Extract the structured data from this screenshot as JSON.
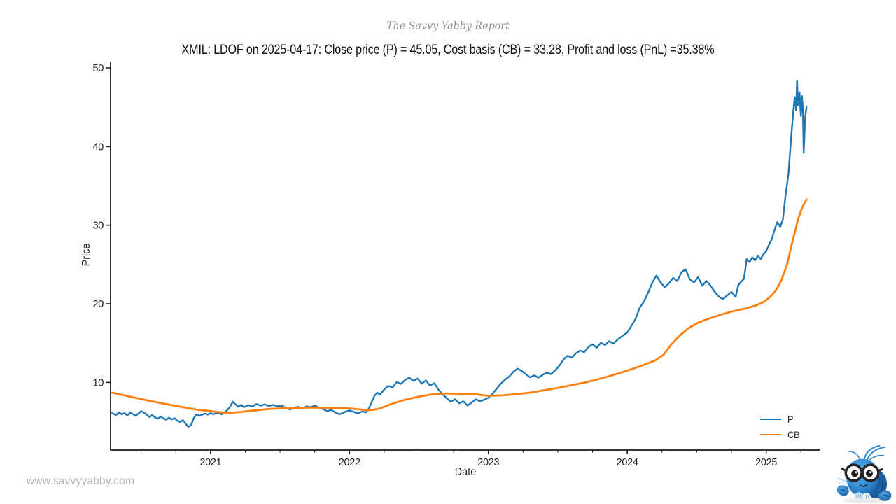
{
  "footer": {
    "watermark": "www.savvyyabby.com",
    "mascot_icon": "yabby-mascot-icon"
  },
  "chart_data": {
    "type": "line",
    "suptitle": "The Savvy Yabby Report",
    "title": "XMIL: LDOF on 2025-04-17: Close price (P) = 45.05, Cost basis (CB) = 33.28, Profit and loss (PnL) =35.38%",
    "xlabel": "Date",
    "ylabel": "Price",
    "xlim": [
      2020.28,
      2025.39
    ],
    "ylim": [
      1.4,
      50.8
    ],
    "yticks": [
      10,
      20,
      30,
      40,
      50
    ],
    "xticks": [
      2021,
      2022,
      2023,
      2024,
      2025
    ],
    "minor_xtick_step": 0.25,
    "grid": false,
    "legend_position": "lower right",
    "axis_color": "#1c1c1c",
    "series": [
      {
        "name": "P",
        "color": "#1f77b4",
        "width": 2.4,
        "points": [
          [
            2020.29,
            6.1
          ],
          [
            2020.32,
            5.85
          ],
          [
            2020.34,
            6.2
          ],
          [
            2020.36,
            5.95
          ],
          [
            2020.38,
            6.1
          ],
          [
            2020.4,
            5.8
          ],
          [
            2020.42,
            6.15
          ],
          [
            2020.44,
            6.0
          ],
          [
            2020.46,
            5.75
          ],
          [
            2020.48,
            6.05
          ],
          [
            2020.5,
            6.35
          ],
          [
            2020.52,
            6.15
          ],
          [
            2020.54,
            5.9
          ],
          [
            2020.56,
            5.6
          ],
          [
            2020.58,
            5.85
          ],
          [
            2020.6,
            5.55
          ],
          [
            2020.62,
            5.4
          ],
          [
            2020.64,
            5.65
          ],
          [
            2020.66,
            5.45
          ],
          [
            2020.68,
            5.25
          ],
          [
            2020.7,
            5.5
          ],
          [
            2020.72,
            5.3
          ],
          [
            2020.74,
            5.45
          ],
          [
            2020.76,
            5.15
          ],
          [
            2020.78,
            4.95
          ],
          [
            2020.8,
            5.2
          ],
          [
            2020.82,
            4.75
          ],
          [
            2020.84,
            4.35
          ],
          [
            2020.86,
            4.6
          ],
          [
            2020.88,
            5.5
          ],
          [
            2020.9,
            5.95
          ],
          [
            2020.92,
            5.75
          ],
          [
            2020.94,
            5.9
          ],
          [
            2020.96,
            6.05
          ],
          [
            2020.98,
            5.9
          ],
          [
            2021.0,
            6.1
          ],
          [
            2021.02,
            5.95
          ],
          [
            2021.05,
            6.15
          ],
          [
            2021.08,
            5.95
          ],
          [
            2021.11,
            6.3
          ],
          [
            2021.14,
            6.9
          ],
          [
            2021.16,
            7.55
          ],
          [
            2021.18,
            7.2
          ],
          [
            2021.2,
            6.9
          ],
          [
            2021.22,
            7.15
          ],
          [
            2021.24,
            6.85
          ],
          [
            2021.27,
            7.1
          ],
          [
            2021.3,
            6.95
          ],
          [
            2021.33,
            7.25
          ],
          [
            2021.36,
            7.05
          ],
          [
            2021.39,
            7.2
          ],
          [
            2021.42,
            7.0
          ],
          [
            2021.45,
            7.15
          ],
          [
            2021.48,
            6.95
          ],
          [
            2021.51,
            7.05
          ],
          [
            2021.54,
            6.8
          ],
          [
            2021.57,
            6.55
          ],
          [
            2021.6,
            6.75
          ],
          [
            2021.63,
            6.9
          ],
          [
            2021.66,
            6.65
          ],
          [
            2021.69,
            6.95
          ],
          [
            2021.72,
            6.85
          ],
          [
            2021.75,
            7.05
          ],
          [
            2021.78,
            6.8
          ],
          [
            2021.81,
            6.6
          ],
          [
            2021.84,
            6.35
          ],
          [
            2021.87,
            6.5
          ],
          [
            2021.9,
            6.15
          ],
          [
            2021.93,
            5.95
          ],
          [
            2021.96,
            6.2
          ],
          [
            2022.0,
            6.45
          ],
          [
            2022.03,
            6.25
          ],
          [
            2022.06,
            6.05
          ],
          [
            2022.09,
            6.3
          ],
          [
            2022.12,
            6.2
          ],
          [
            2022.14,
            6.7
          ],
          [
            2022.16,
            7.5
          ],
          [
            2022.18,
            8.3
          ],
          [
            2022.2,
            8.7
          ],
          [
            2022.22,
            8.45
          ],
          [
            2022.25,
            9.1
          ],
          [
            2022.28,
            9.55
          ],
          [
            2022.31,
            9.35
          ],
          [
            2022.34,
            10.05
          ],
          [
            2022.37,
            9.8
          ],
          [
            2022.4,
            10.3
          ],
          [
            2022.43,
            10.6
          ],
          [
            2022.46,
            10.2
          ],
          [
            2022.49,
            10.5
          ],
          [
            2022.52,
            9.85
          ],
          [
            2022.55,
            10.25
          ],
          [
            2022.58,
            9.6
          ],
          [
            2022.61,
            9.9
          ],
          [
            2022.64,
            9.1
          ],
          [
            2022.67,
            8.5
          ],
          [
            2022.7,
            8.0
          ],
          [
            2022.73,
            7.55
          ],
          [
            2022.76,
            7.85
          ],
          [
            2022.79,
            7.35
          ],
          [
            2022.82,
            7.6
          ],
          [
            2022.85,
            7.05
          ],
          [
            2022.88,
            7.45
          ],
          [
            2022.91,
            7.85
          ],
          [
            2022.94,
            7.6
          ],
          [
            2022.97,
            7.8
          ],
          [
            2023.0,
            8.05
          ],
          [
            2023.03,
            8.55
          ],
          [
            2023.06,
            9.2
          ],
          [
            2023.09,
            9.85
          ],
          [
            2023.12,
            10.35
          ],
          [
            2023.15,
            10.75
          ],
          [
            2023.18,
            11.35
          ],
          [
            2023.21,
            11.75
          ],
          [
            2023.24,
            11.45
          ],
          [
            2023.27,
            11.05
          ],
          [
            2023.3,
            10.65
          ],
          [
            2023.33,
            10.9
          ],
          [
            2023.36,
            10.6
          ],
          [
            2023.39,
            10.95
          ],
          [
            2023.42,
            11.25
          ],
          [
            2023.45,
            11.05
          ],
          [
            2023.48,
            11.5
          ],
          [
            2023.51,
            12.1
          ],
          [
            2023.54,
            12.9
          ],
          [
            2023.57,
            13.4
          ],
          [
            2023.6,
            13.15
          ],
          [
            2023.63,
            13.7
          ],
          [
            2023.66,
            14.05
          ],
          [
            2023.69,
            13.85
          ],
          [
            2023.72,
            14.5
          ],
          [
            2023.75,
            14.85
          ],
          [
            2023.78,
            14.4
          ],
          [
            2023.81,
            15.05
          ],
          [
            2023.84,
            14.75
          ],
          [
            2023.87,
            15.25
          ],
          [
            2023.9,
            14.95
          ],
          [
            2023.93,
            15.45
          ],
          [
            2023.96,
            15.85
          ],
          [
            2024.0,
            16.35
          ],
          [
            2024.03,
            17.2
          ],
          [
            2024.06,
            18.1
          ],
          [
            2024.09,
            19.5
          ],
          [
            2024.12,
            20.3
          ],
          [
            2024.15,
            21.4
          ],
          [
            2024.18,
            22.7
          ],
          [
            2024.21,
            23.6
          ],
          [
            2024.24,
            22.7
          ],
          [
            2024.27,
            22.1
          ],
          [
            2024.3,
            22.6
          ],
          [
            2024.33,
            23.3
          ],
          [
            2024.36,
            22.9
          ],
          [
            2024.39,
            24.0
          ],
          [
            2024.42,
            24.4
          ],
          [
            2024.45,
            23.1
          ],
          [
            2024.48,
            22.7
          ],
          [
            2024.51,
            23.4
          ],
          [
            2024.54,
            22.3
          ],
          [
            2024.57,
            22.9
          ],
          [
            2024.6,
            22.3
          ],
          [
            2024.63,
            21.5
          ],
          [
            2024.66,
            20.9
          ],
          [
            2024.69,
            20.6
          ],
          [
            2024.72,
            21.1
          ],
          [
            2024.75,
            21.5
          ],
          [
            2024.78,
            20.9
          ],
          [
            2024.8,
            22.4
          ],
          [
            2024.82,
            22.8
          ],
          [
            2024.84,
            23.2
          ],
          [
            2024.86,
            25.7
          ],
          [
            2024.88,
            25.3
          ],
          [
            2024.9,
            25.9
          ],
          [
            2024.92,
            25.5
          ],
          [
            2024.94,
            26.1
          ],
          [
            2024.96,
            25.7
          ],
          [
            2024.98,
            26.3
          ],
          [
            2025.0,
            26.7
          ],
          [
            2025.02,
            27.5
          ],
          [
            2025.04,
            28.2
          ],
          [
            2025.06,
            29.4
          ],
          [
            2025.08,
            30.4
          ],
          [
            2025.1,
            29.8
          ],
          [
            2025.12,
            30.7
          ],
          [
            2025.14,
            33.9
          ],
          [
            2025.16,
            36.5
          ],
          [
            2025.18,
            41.2
          ],
          [
            2025.195,
            44.4
          ],
          [
            2025.205,
            46.3
          ],
          [
            2025.215,
            44.6
          ],
          [
            2025.222,
            48.3
          ],
          [
            2025.23,
            45.2
          ],
          [
            2025.24,
            46.9
          ],
          [
            2025.25,
            43.9
          ],
          [
            2025.258,
            46.4
          ],
          [
            2025.264,
            44.8
          ],
          [
            2025.27,
            39.2
          ],
          [
            2025.28,
            43.6
          ],
          [
            2025.29,
            45.05
          ]
        ]
      },
      {
        "name": "CB",
        "color": "#ff7f0e",
        "width": 2.8,
        "points": [
          [
            2020.29,
            8.7
          ],
          [
            2020.38,
            8.35
          ],
          [
            2020.47,
            8.0
          ],
          [
            2020.56,
            7.65
          ],
          [
            2020.65,
            7.35
          ],
          [
            2020.74,
            7.05
          ],
          [
            2020.83,
            6.75
          ],
          [
            2020.92,
            6.5
          ],
          [
            2021.0,
            6.35
          ],
          [
            2021.08,
            6.2
          ],
          [
            2021.15,
            6.15
          ],
          [
            2021.22,
            6.25
          ],
          [
            2021.3,
            6.4
          ],
          [
            2021.4,
            6.6
          ],
          [
            2021.5,
            6.7
          ],
          [
            2021.6,
            6.75
          ],
          [
            2021.7,
            6.8
          ],
          [
            2021.8,
            6.8
          ],
          [
            2021.9,
            6.75
          ],
          [
            2022.0,
            6.7
          ],
          [
            2022.06,
            6.6
          ],
          [
            2022.12,
            6.5
          ],
          [
            2022.16,
            6.5
          ],
          [
            2022.22,
            6.7
          ],
          [
            2022.3,
            7.25
          ],
          [
            2022.4,
            7.8
          ],
          [
            2022.5,
            8.2
          ],
          [
            2022.6,
            8.5
          ],
          [
            2022.7,
            8.6
          ],
          [
            2022.8,
            8.55
          ],
          [
            2022.9,
            8.5
          ],
          [
            2023.0,
            8.3
          ],
          [
            2023.1,
            8.35
          ],
          [
            2023.2,
            8.5
          ],
          [
            2023.3,
            8.7
          ],
          [
            2023.4,
            9.0
          ],
          [
            2023.5,
            9.3
          ],
          [
            2023.6,
            9.65
          ],
          [
            2023.7,
            10.0
          ],
          [
            2023.8,
            10.45
          ],
          [
            2023.9,
            10.95
          ],
          [
            2024.0,
            11.5
          ],
          [
            2024.1,
            12.1
          ],
          [
            2024.2,
            12.8
          ],
          [
            2024.26,
            13.5
          ],
          [
            2024.32,
            14.9
          ],
          [
            2024.38,
            16.0
          ],
          [
            2024.44,
            16.9
          ],
          [
            2024.5,
            17.5
          ],
          [
            2024.56,
            17.95
          ],
          [
            2024.62,
            18.3
          ],
          [
            2024.68,
            18.65
          ],
          [
            2024.74,
            18.95
          ],
          [
            2024.8,
            19.2
          ],
          [
            2024.86,
            19.45
          ],
          [
            2024.92,
            19.75
          ],
          [
            2024.98,
            20.2
          ],
          [
            2025.03,
            20.9
          ],
          [
            2025.07,
            21.7
          ],
          [
            2025.11,
            23.0
          ],
          [
            2025.15,
            25.0
          ],
          [
            2025.19,
            28.0
          ],
          [
            2025.23,
            30.8
          ],
          [
            2025.26,
            32.3
          ],
          [
            2025.29,
            33.28
          ]
        ]
      }
    ]
  }
}
